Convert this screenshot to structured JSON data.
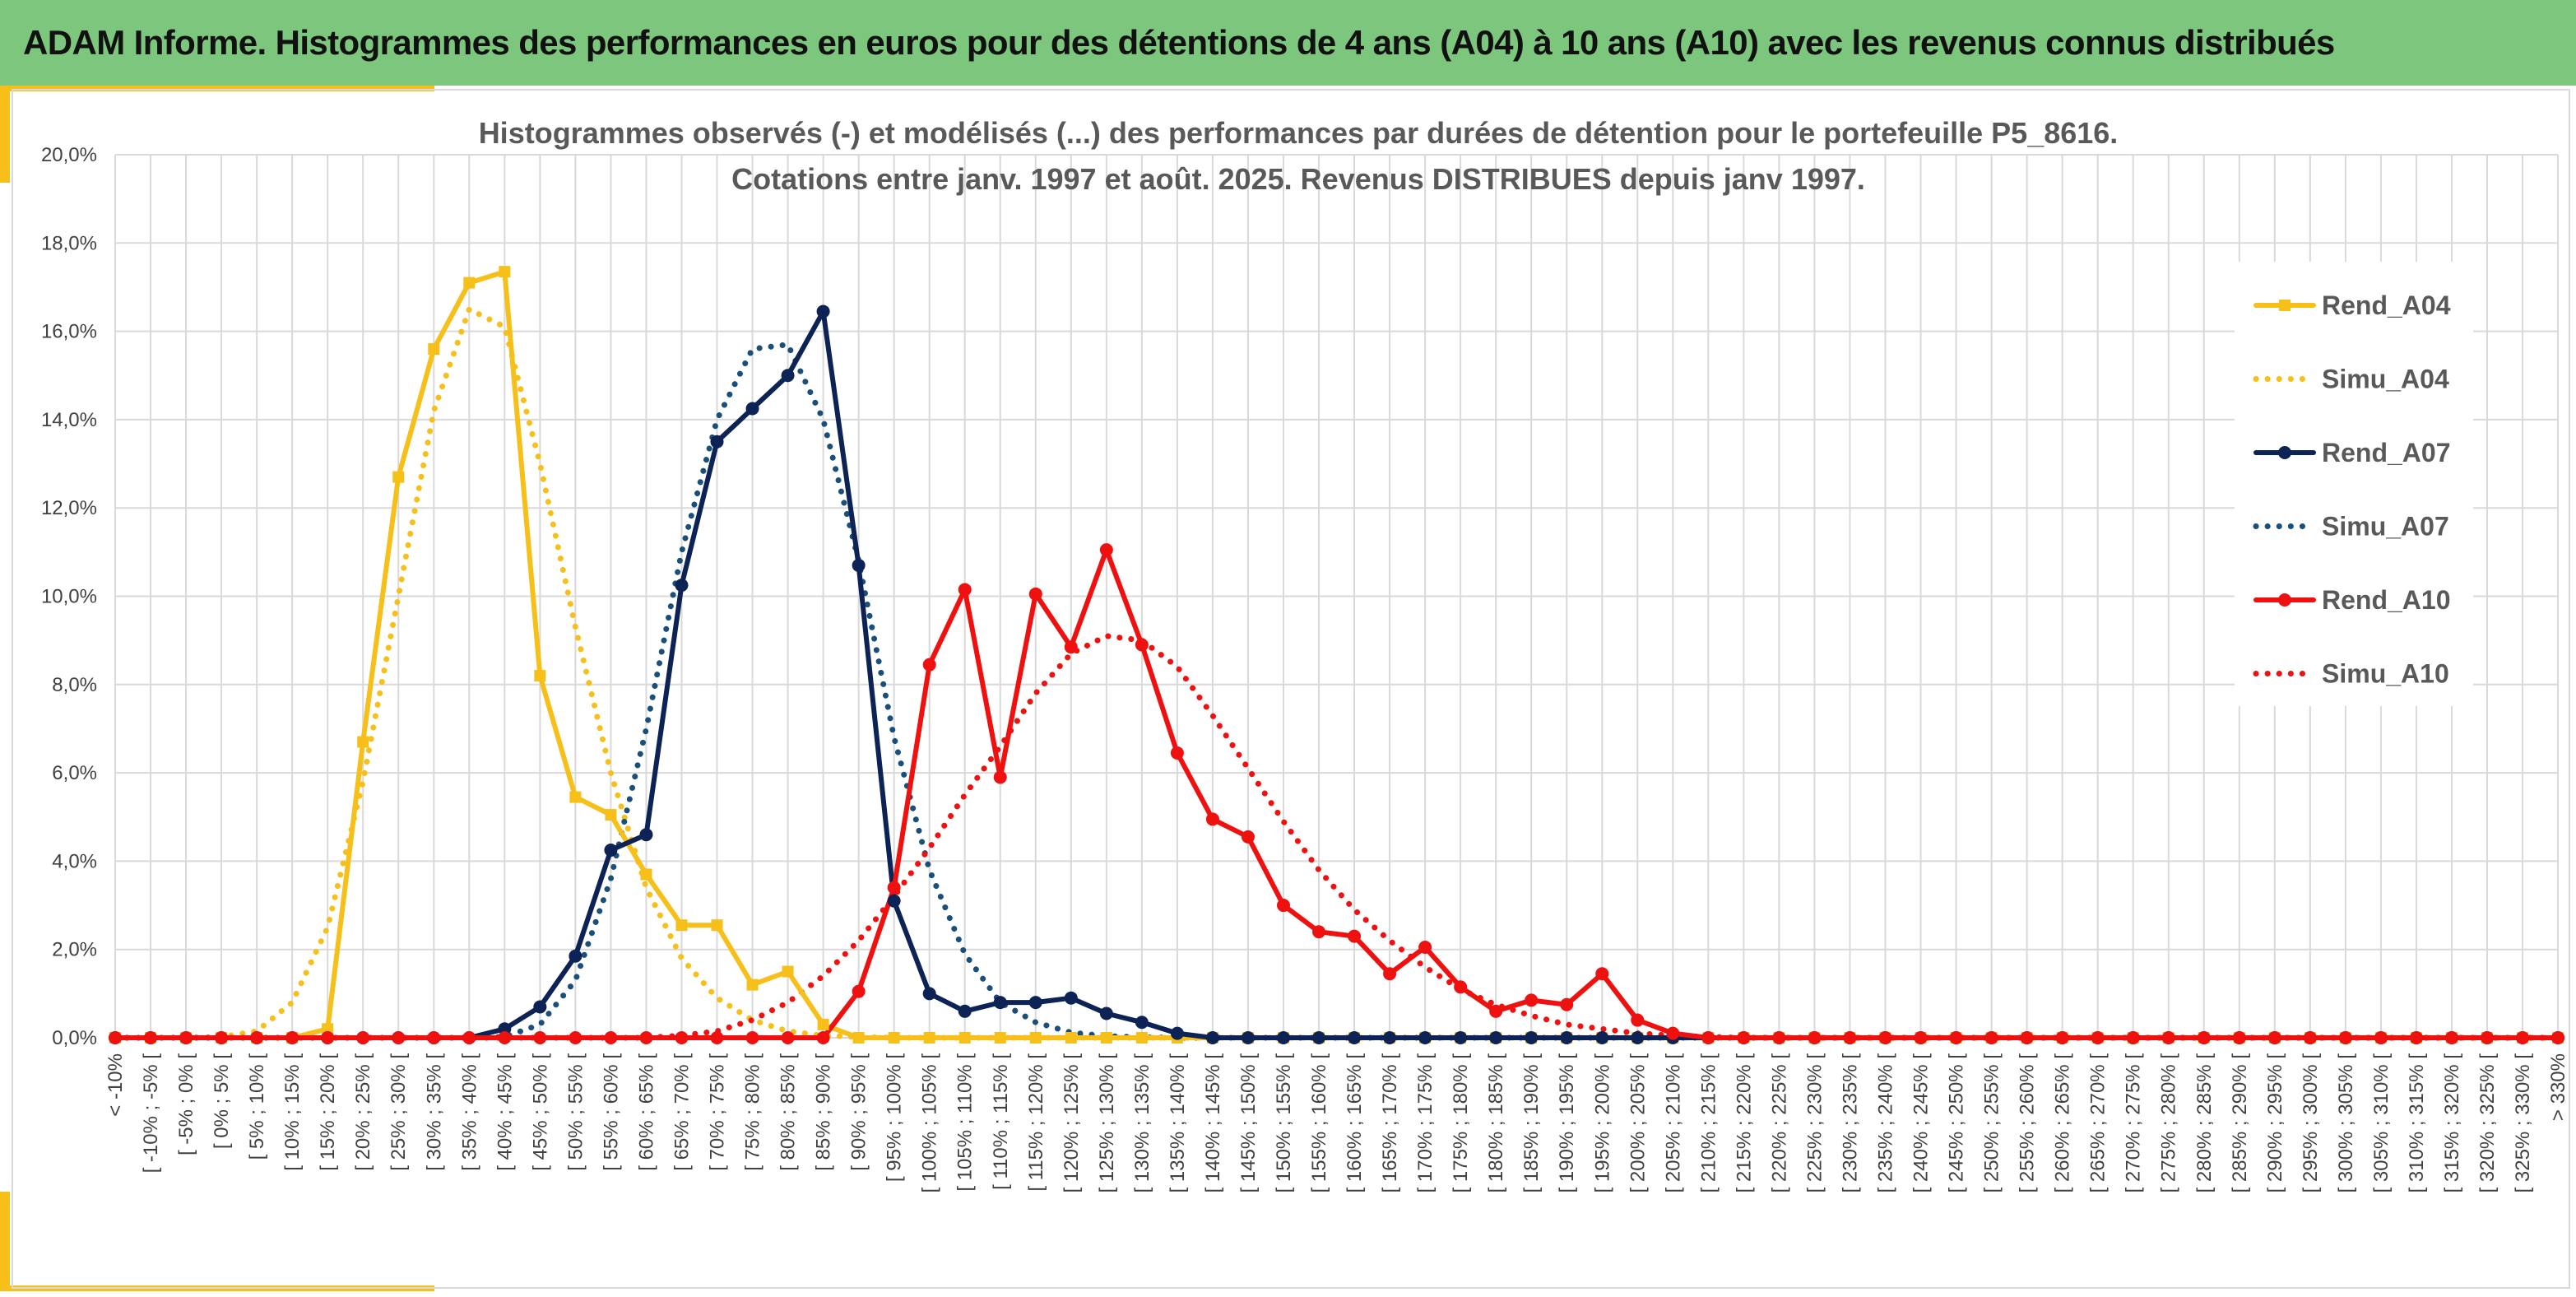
{
  "header": {
    "title": "ADAM Informe. Histogrammes des performances en euros pour des détentions de 4 ans (A04) à 10 ans (A10) avec les revenus connus distribués"
  },
  "colors": {
    "banner": "#7dc67d",
    "accent": "#f6bf1a",
    "gold": "#f6bf1a",
    "navy": "#0d2356",
    "red": "#ef1010",
    "grid": "#d9d9d9"
  },
  "chart_data": {
    "type": "line",
    "title_lines": [
      "Histogrammes observés (-) et modélisés (...) des performances par durées de détention pour le portefeuille P5_8616.",
      "Cotations entre janv. 1997 et août. 2025. Revenus DISTRIBUES depuis janv 1997."
    ],
    "ylim": [
      0,
      20
    ],
    "yticks": [
      "0,0%",
      "2,0%",
      "4,0%",
      "6,0%",
      "8,0%",
      "10,0%",
      "12,0%",
      "14,0%",
      "16,0%",
      "18,0%",
      "20,0%"
    ],
    "grid": true,
    "legend_position": "right",
    "categories": [
      "< -10%",
      "[ -10% ; -5% [",
      "[ -5% ; 0% [",
      "[ 0% ; 5% [",
      "[ 5% ; 10% [",
      "[ 10% ; 15% [",
      "[ 15% ; 20% [",
      "[ 20% ; 25% [",
      "[ 25% ; 30% [",
      "[ 30% ; 35% [",
      "[ 35% ; 40% [",
      "[ 40% ; 45% [",
      "[ 45% ; 50% [",
      "[ 50% ; 55% [",
      "[ 55% ; 60% [",
      "[ 60% ; 65% [",
      "[ 65% ; 70% [",
      "[ 70% ; 75% [",
      "[ 75% ; 80% [",
      "[ 80% ; 85% [",
      "[ 85% ; 90% [",
      "[ 90% ; 95% [",
      "[ 95% ; 100% [",
      "[ 100% ; 105% [",
      "[ 105% ; 110% [",
      "[ 110% ; 115% [",
      "[ 115% ; 120% [",
      "[ 120% ; 125% [",
      "[ 125% ; 130% [",
      "[ 130% ; 135% [",
      "[ 135% ; 140% [",
      "[ 140% ; 145% [",
      "[ 145% ; 150% [",
      "[ 150% ; 155% [",
      "[ 155% ; 160% [",
      "[ 160% ; 165% [",
      "[ 165% ; 170% [",
      "[ 170% ; 175% [",
      "[ 175% ; 180% [",
      "[ 180% ; 185% [",
      "[ 185% ; 190% [",
      "[ 190% ; 195% [",
      "[ 195% ; 200% [",
      "[ 200% ; 205% [",
      "[ 205% ; 210% [",
      "[ 210% ; 215% [",
      "[ 215% ; 220% [",
      "[ 220% ; 225% [",
      "[ 225% ; 230% [",
      "[ 230% ; 235% [",
      "[ 235% ; 240% [",
      "[ 240% ; 245% [",
      "[ 245% ; 250% [",
      "[ 250% ; 255% [",
      "[ 255% ; 260% [",
      "[ 260% ; 265% [",
      "[ 265% ; 270% [",
      "[ 270% ; 275% [",
      "[ 275% ; 280% [",
      "[ 280% ; 285% [",
      "[ 285% ; 290% [",
      "[ 290% ; 295% [",
      "[ 295% ; 300% [",
      "[ 300% ; 305% [",
      "[ 305% ; 310% [",
      "[ 310% ; 315% [",
      "[ 315% ; 320% [",
      "[ 320% ; 325% [",
      "[ 325% ; 330% [",
      "> 330%"
    ],
    "series": [
      {
        "name": "Rend_A04",
        "style": "solid",
        "marker": "square",
        "color": "#f6bf1a",
        "values": [
          0,
          0,
          0,
          0,
          0,
          0,
          0.2,
          6.7,
          12.7,
          15.6,
          17.1,
          17.35,
          8.2,
          5.45,
          5.05,
          3.7,
          2.55,
          2.55,
          1.2,
          1.5,
          0.3,
          0,
          0,
          0,
          0,
          0,
          0,
          0,
          0,
          0,
          0,
          0,
          0,
          0,
          0,
          0,
          0,
          0,
          0,
          0,
          0,
          0,
          0,
          0,
          0,
          0,
          0,
          0,
          0,
          0,
          0,
          0,
          0,
          0,
          0,
          0,
          0,
          0,
          0,
          0,
          0,
          0,
          0,
          0,
          0,
          0,
          0,
          0,
          0,
          0
        ]
      },
      {
        "name": "Simu_A04",
        "style": "dotted",
        "marker": "none",
        "color": "#f6bf1a",
        "values": [
          0,
          0,
          0,
          0.02,
          0.15,
          0.8,
          2.5,
          5.8,
          10.0,
          14.2,
          16.5,
          16.1,
          13.0,
          9.3,
          6.0,
          3.4,
          1.8,
          0.9,
          0.4,
          0.15,
          0.05,
          0.02,
          0,
          0,
          0,
          0,
          0,
          0,
          0,
          0,
          0,
          0,
          0,
          0,
          0,
          0,
          0,
          0,
          0,
          0,
          0,
          0,
          0,
          0,
          0,
          0,
          0,
          0,
          0,
          0,
          0,
          0,
          0,
          0,
          0,
          0,
          0,
          0,
          0,
          0,
          0,
          0,
          0,
          0,
          0,
          0,
          0,
          0,
          0,
          0
        ]
      },
      {
        "name": "Rend_A07",
        "style": "solid",
        "marker": "circle",
        "color": "#0d2356",
        "values": [
          0,
          0,
          0,
          0,
          0,
          0,
          0,
          0,
          0,
          0,
          0,
          0.2,
          0.7,
          1.85,
          4.25,
          4.6,
          10.25,
          13.5,
          14.25,
          15.0,
          16.45,
          10.7,
          3.1,
          1.0,
          0.6,
          0.8,
          0.8,
          0.9,
          0.55,
          0.35,
          0.1,
          0,
          0,
          0,
          0,
          0,
          0,
          0,
          0,
          0,
          0,
          0,
          0,
          0,
          0,
          0,
          0,
          0,
          0,
          0,
          0,
          0,
          0,
          0,
          0,
          0,
          0,
          0,
          0,
          0,
          0,
          0,
          0,
          0,
          0,
          0,
          0,
          0,
          0,
          0
        ]
      },
      {
        "name": "Simu_A07",
        "style": "dotted",
        "marker": "none",
        "color": "#1a4f7a",
        "values": [
          0,
          0,
          0,
          0,
          0,
          0,
          0,
          0,
          0,
          0,
          0,
          0.02,
          0.3,
          1.3,
          3.6,
          7.0,
          11.0,
          14.0,
          15.6,
          15.7,
          14.0,
          10.8,
          6.8,
          3.8,
          1.9,
          0.8,
          0.35,
          0.12,
          0.04,
          0.01,
          0,
          0,
          0,
          0,
          0,
          0,
          0,
          0,
          0,
          0,
          0,
          0,
          0,
          0,
          0,
          0,
          0,
          0,
          0,
          0,
          0,
          0,
          0,
          0,
          0,
          0,
          0,
          0,
          0,
          0,
          0,
          0,
          0,
          0,
          0,
          0,
          0,
          0,
          0,
          0
        ]
      },
      {
        "name": "Rend_A10",
        "style": "solid",
        "marker": "circle",
        "color": "#ef1010",
        "values": [
          0,
          0,
          0,
          0,
          0,
          0,
          0,
          0,
          0,
          0,
          0,
          0,
          0,
          0,
          0,
          0,
          0,
          0,
          0,
          0,
          0,
          1.05,
          3.4,
          8.45,
          10.15,
          5.9,
          10.05,
          8.85,
          11.05,
          8.9,
          6.45,
          4.95,
          4.55,
          3.0,
          2.4,
          2.3,
          1.45,
          2.05,
          1.15,
          0.6,
          0.85,
          0.75,
          1.45,
          0.4,
          0.1,
          0,
          0,
          0,
          0,
          0,
          0,
          0,
          0,
          0,
          0,
          0,
          0,
          0,
          0,
          0,
          0,
          0,
          0,
          0,
          0,
          0,
          0,
          0,
          0,
          0
        ]
      },
      {
        "name": "Simu_A10",
        "style": "dotted",
        "marker": "none",
        "color": "#ef1010",
        "values": [
          0,
          0,
          0,
          0,
          0,
          0,
          0,
          0,
          0,
          0,
          0,
          0,
          0,
          0,
          0,
          0,
          0.05,
          0.15,
          0.4,
          0.8,
          1.4,
          2.2,
          3.2,
          4.3,
          5.5,
          6.6,
          7.8,
          8.7,
          9.1,
          9.0,
          8.4,
          7.3,
          6.1,
          4.9,
          3.8,
          2.9,
          2.2,
          1.6,
          1.1,
          0.75,
          0.5,
          0.3,
          0.2,
          0.1,
          0.05,
          0.02,
          0,
          0,
          0,
          0,
          0,
          0,
          0,
          0,
          0,
          0,
          0,
          0,
          0,
          0,
          0,
          0,
          0,
          0,
          0,
          0,
          0,
          0,
          0,
          0
        ]
      }
    ]
  }
}
